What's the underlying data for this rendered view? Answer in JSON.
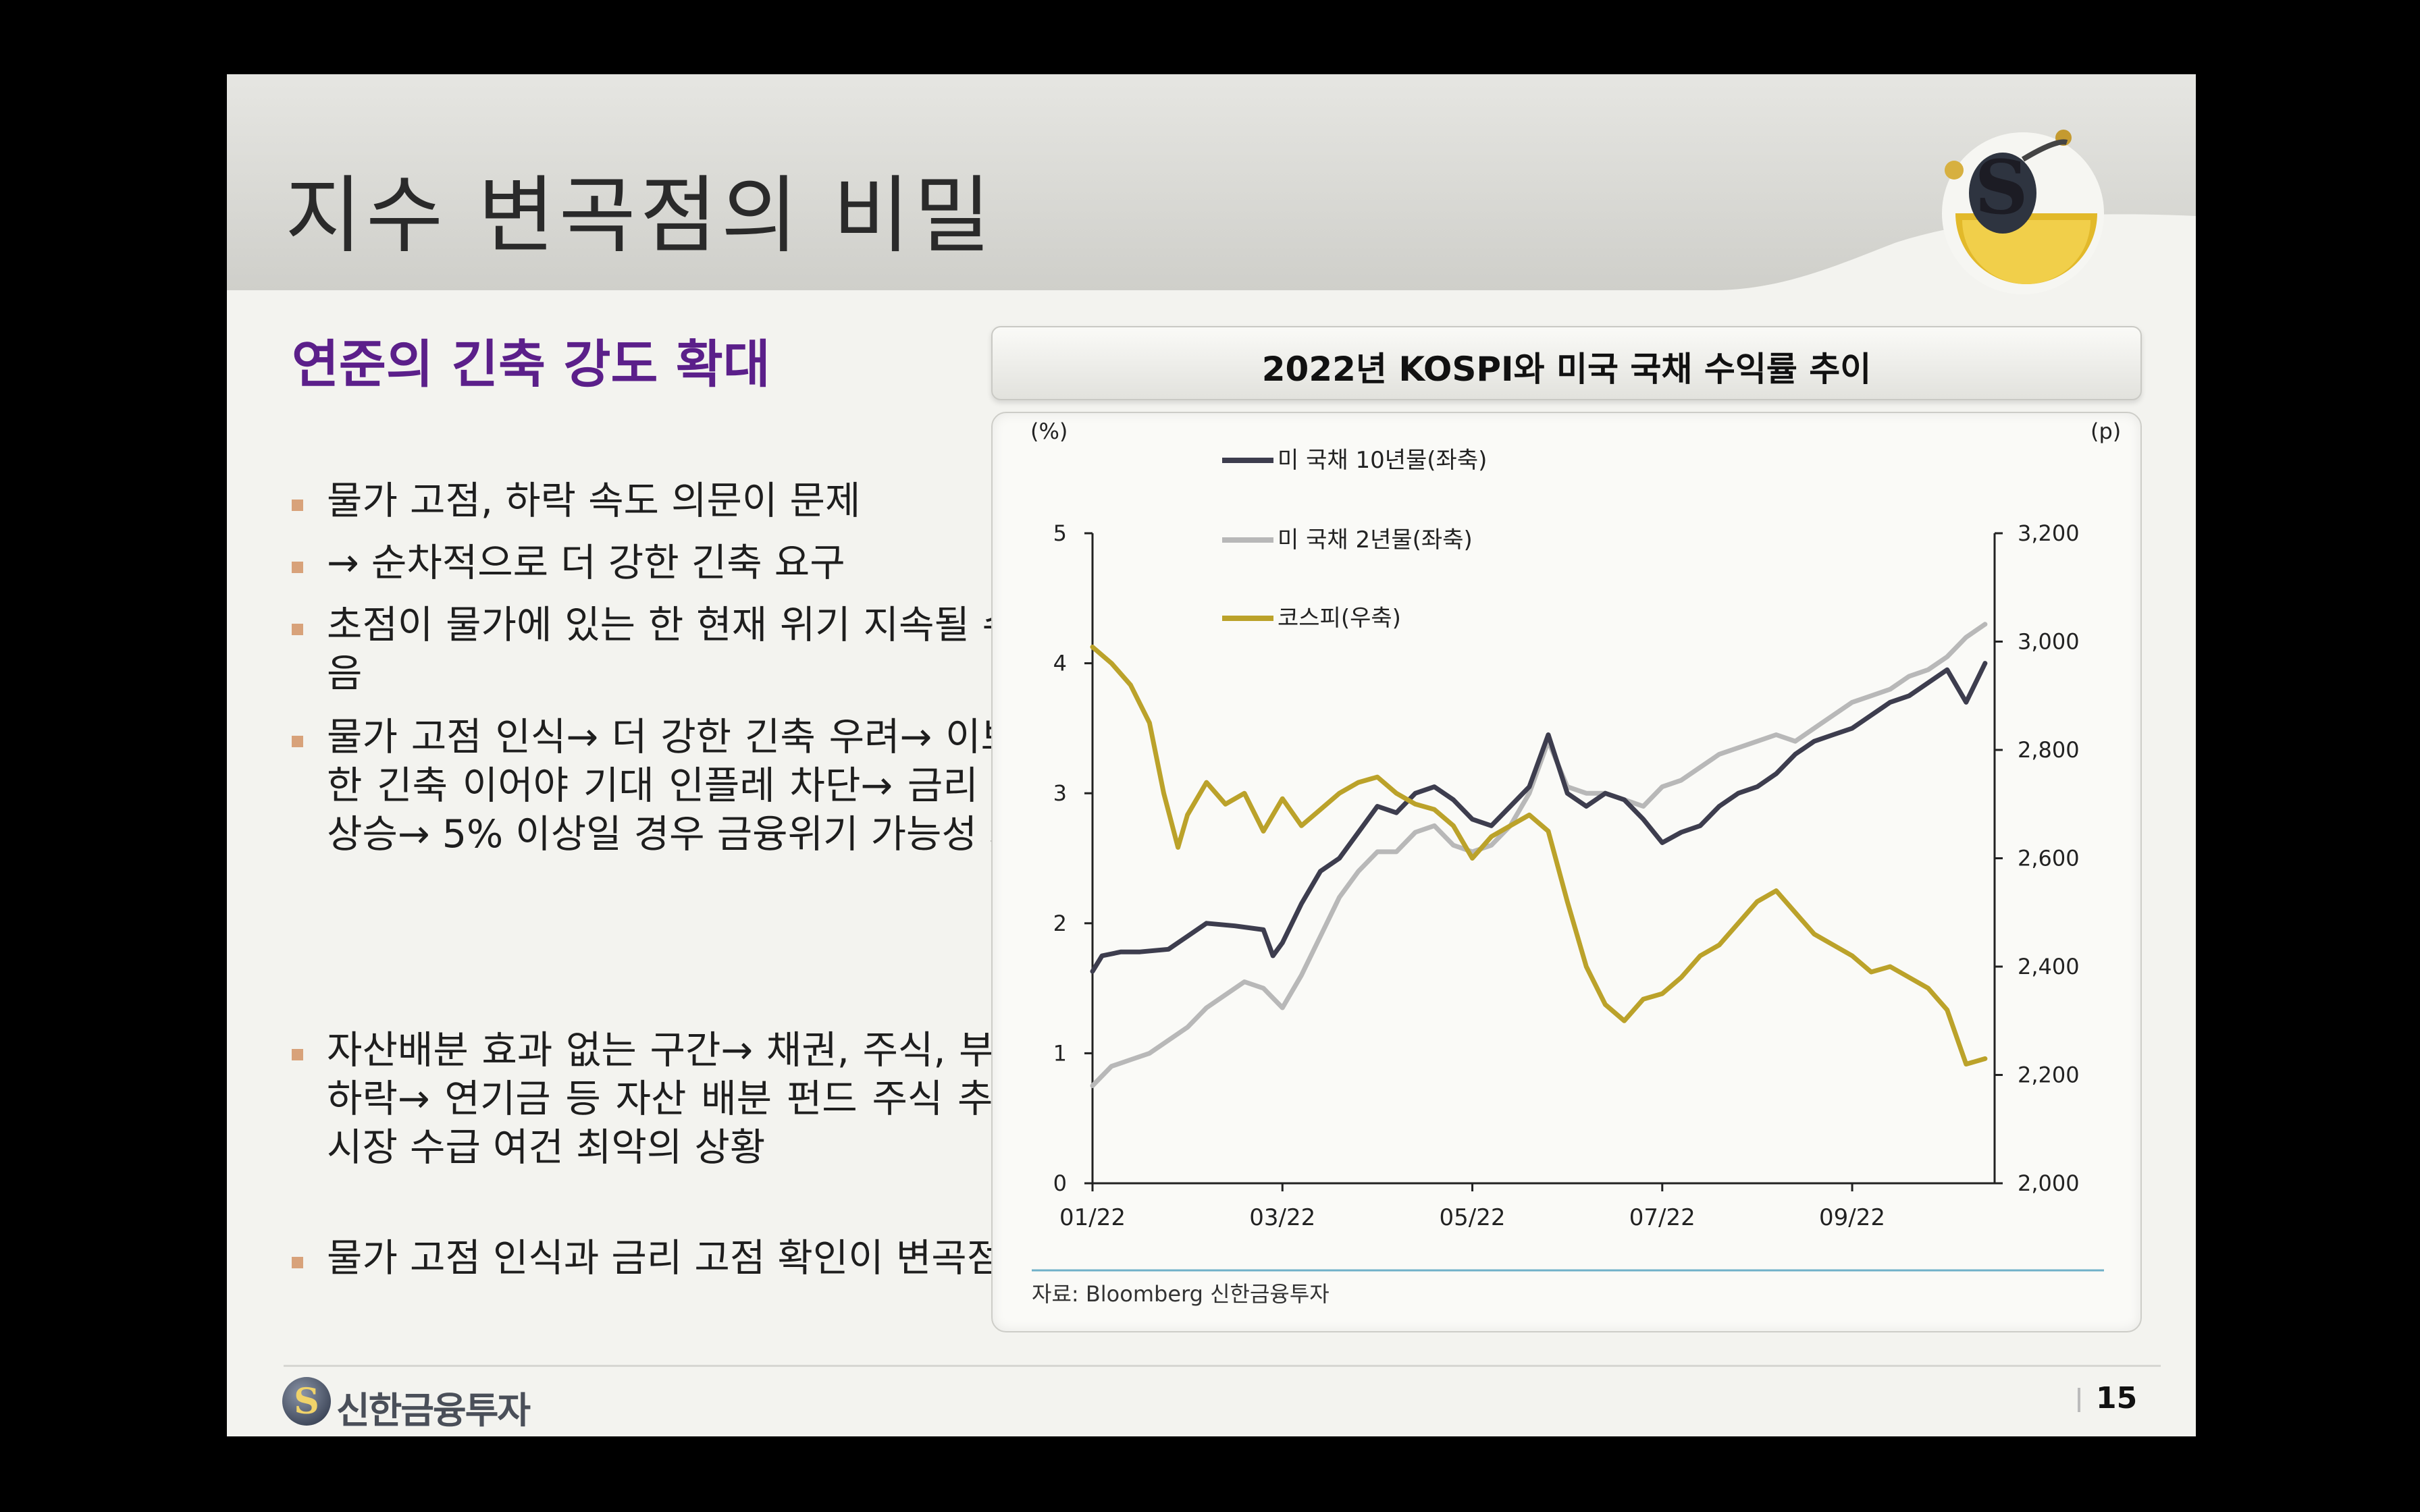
{
  "slide": {
    "title": "지수 변곡점의 비밀",
    "section_heading": "연준의 긴축 강도 확대",
    "bullets": [
      "물가 고점, 하락 속도 의문이 문제",
      "→ 순차적으로 더 강한 긴축 요구",
      "초점이 물가에 있는 한 현재 위기 지속될 수 밖에 없음",
      "물가 고점 인식→ 더 강한 긴축 우려→ 이보다 더 강한 긴축 이어야 기대 인플레 차단→ 금리 상단 지속 상승→ 5% 이상일 경우 금융위기 가능성 제기",
      "자산배분 효과 없는 구간→ 채권, 주식, 부동산 모두 하락→ 연기금 등 자산 배분 펀드 주식 추가 매도로 시장 수급 여건 최악의 상황",
      "물가 고점 인식과 금리 고점 확인이 변곡점"
    ],
    "footer_brand": "신한금융투자",
    "page_number": "15"
  },
  "icons": {
    "mascot": "mascot-logo-icon",
    "brand": "shinhan-logo-icon"
  },
  "colors": {
    "title_band": "#d9d9d4",
    "heading": "#5b1f8a",
    "bullet_marker": "#d8a27a",
    "ust10y": "#3d3d4e",
    "ust2y": "#b8b8b8",
    "kospi": "#bba22a"
  },
  "chart_data": {
    "type": "line",
    "title": "2022년 KOSPI와 미국 국채 수익률 추이",
    "y_left_unit": "(%)",
    "y_right_unit": "(p)",
    "x_ticks": [
      "01/22",
      "03/22",
      "05/22",
      "07/22",
      "09/22"
    ],
    "y_left_ticks": [
      "0",
      "1",
      "2",
      "3",
      "4",
      "5"
    ],
    "y_right_ticks": [
      "2,000",
      "2,200",
      "2,400",
      "2,600",
      "2,800",
      "3,000",
      "3,200"
    ],
    "ylim_left": [
      0,
      5
    ],
    "ylim_right": [
      2000,
      3200
    ],
    "xlim": [
      0,
      9.5
    ],
    "source": "자료: Bloomberg 신한금융투자",
    "legend_position": "top-left",
    "series": [
      {
        "name": "미 국채 10년물(좌축)",
        "axis": "left",
        "x": [
          0,
          0.1,
          0.3,
          0.5,
          0.8,
          1.0,
          1.2,
          1.5,
          1.8,
          1.9,
          2.0,
          2.2,
          2.4,
          2.6,
          2.8,
          3.0,
          3.2,
          3.4,
          3.6,
          3.8,
          4.0,
          4.2,
          4.4,
          4.6,
          4.8,
          5.0,
          5.2,
          5.4,
          5.6,
          5.8,
          6.0,
          6.2,
          6.4,
          6.6,
          6.8,
          7.0,
          7.2,
          7.4,
          7.6,
          7.8,
          8.0,
          8.2,
          8.4,
          8.6,
          8.8,
          9.0,
          9.2,
          9.4
        ],
        "y": [
          1.63,
          1.75,
          1.78,
          1.78,
          1.8,
          1.9,
          2.0,
          1.98,
          1.95,
          1.75,
          1.85,
          2.15,
          2.4,
          2.5,
          2.7,
          2.9,
          2.85,
          3.0,
          3.05,
          2.95,
          2.8,
          2.75,
          2.9,
          3.05,
          3.45,
          3.0,
          2.9,
          3.0,
          2.95,
          2.8,
          2.62,
          2.7,
          2.75,
          2.9,
          3.0,
          3.05,
          3.15,
          3.3,
          3.4,
          3.45,
          3.5,
          3.6,
          3.7,
          3.75,
          3.85,
          3.95,
          3.7,
          4.0
        ]
      },
      {
        "name": "미 국채 2년물(좌축)",
        "axis": "left",
        "x": [
          0,
          0.2,
          0.4,
          0.6,
          0.8,
          1.0,
          1.2,
          1.4,
          1.6,
          1.8,
          2.0,
          2.2,
          2.4,
          2.6,
          2.8,
          3.0,
          3.2,
          3.4,
          3.6,
          3.8,
          4.0,
          4.2,
          4.4,
          4.6,
          4.8,
          5.0,
          5.2,
          5.4,
          5.6,
          5.8,
          6.0,
          6.2,
          6.4,
          6.6,
          6.8,
          7.0,
          7.2,
          7.4,
          7.6,
          7.8,
          8.0,
          8.2,
          8.4,
          8.6,
          8.8,
          9.0,
          9.2,
          9.4
        ],
        "y": [
          0.75,
          0.9,
          0.95,
          1.0,
          1.1,
          1.2,
          1.35,
          1.45,
          1.55,
          1.5,
          1.35,
          1.6,
          1.9,
          2.2,
          2.4,
          2.55,
          2.55,
          2.7,
          2.75,
          2.6,
          2.55,
          2.6,
          2.75,
          3.0,
          3.4,
          3.05,
          3.0,
          3.0,
          2.95,
          2.9,
          3.05,
          3.1,
          3.2,
          3.3,
          3.35,
          3.4,
          3.45,
          3.4,
          3.5,
          3.6,
          3.7,
          3.75,
          3.8,
          3.9,
          3.95,
          4.05,
          4.2,
          4.3
        ]
      },
      {
        "name": "코스피(우축)",
        "axis": "right",
        "x": [
          0,
          0.2,
          0.4,
          0.6,
          0.75,
          0.9,
          1.0,
          1.2,
          1.4,
          1.6,
          1.8,
          2.0,
          2.2,
          2.4,
          2.6,
          2.8,
          3.0,
          3.2,
          3.4,
          3.6,
          3.8,
          4.0,
          4.2,
          4.4,
          4.6,
          4.8,
          5.0,
          5.2,
          5.4,
          5.6,
          5.8,
          6.0,
          6.2,
          6.4,
          6.6,
          6.8,
          7.0,
          7.2,
          7.4,
          7.6,
          7.8,
          8.0,
          8.2,
          8.4,
          8.6,
          8.8,
          9.0,
          9.2,
          9.4
        ],
        "y": [
          2990,
          2960,
          2920,
          2850,
          2720,
          2620,
          2680,
          2740,
          2700,
          2720,
          2650,
          2710,
          2660,
          2690,
          2720,
          2740,
          2750,
          2720,
          2700,
          2690,
          2660,
          2600,
          2640,
          2660,
          2680,
          2650,
          2520,
          2400,
          2330,
          2300,
          2340,
          2350,
          2380,
          2420,
          2440,
          2480,
          2520,
          2540,
          2500,
          2460,
          2440,
          2420,
          2390,
          2400,
          2380,
          2360,
          2320,
          2220,
          2230
        ]
      }
    ]
  }
}
